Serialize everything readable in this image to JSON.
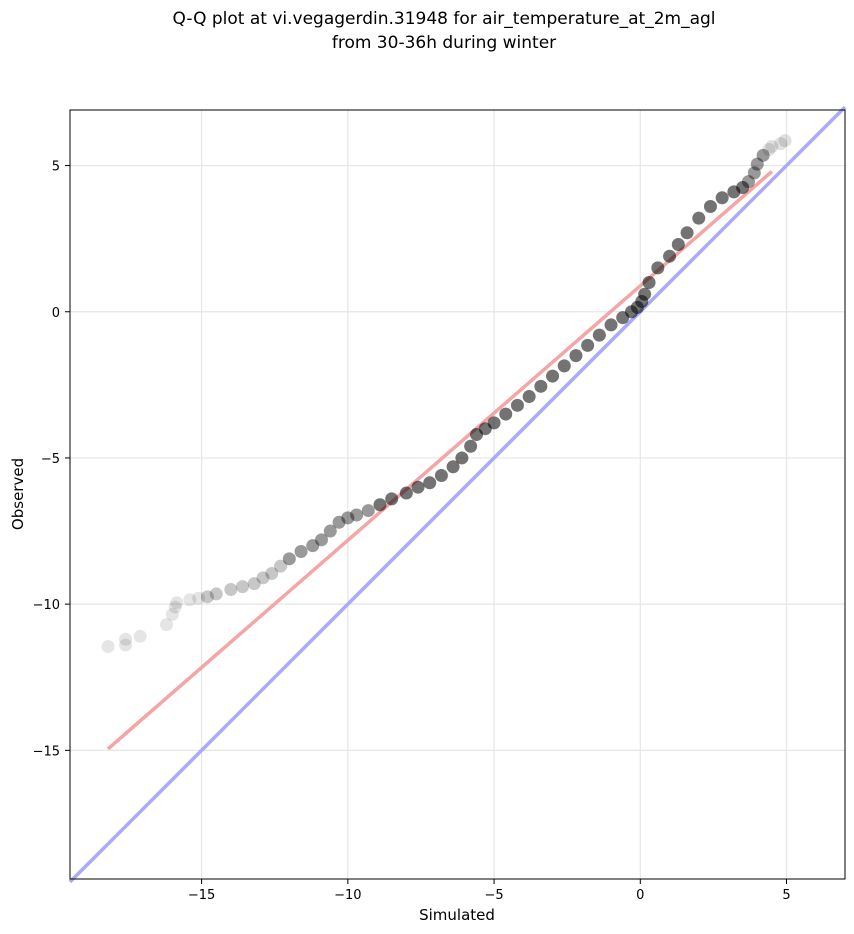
{
  "chart_data": {
    "type": "scatter",
    "title": [
      "Q-Q plot at vi.vegagerdin.31948 for air_temperature_at_2m_agl",
      "from 30-36h during winter"
    ],
    "xlabel": "Simulated",
    "ylabel": "Observed",
    "xlim": [
      -19.5,
      7.0
    ],
    "ylim": [
      -19.4,
      6.9
    ],
    "xticks": [
      -15,
      -10,
      -5,
      0,
      5
    ],
    "yticks": [
      -15,
      -10,
      -5,
      0,
      5
    ],
    "xtick_labels": [
      "−15",
      "−10",
      "−5",
      "0",
      "5"
    ],
    "ytick_labels": [
      "−15",
      "−10",
      "−5",
      "0",
      "5"
    ],
    "grid": true,
    "colors": {
      "points": "#000000",
      "fit_line": "#f4a5a5",
      "identity_line": "#aaaaf6"
    },
    "lines": [
      {
        "kind": "fit",
        "x": [
          -18.2,
          4.5
        ],
        "y": [
          -14.95,
          4.8
        ]
      },
      {
        "kind": "identity",
        "x": [
          -19.5,
          7.0
        ],
        "y": [
          -19.5,
          7.0
        ]
      }
    ],
    "series": [
      {
        "x": [
          -18.2,
          -17.6,
          -17.6,
          -17.1,
          -16.2,
          -16.0,
          -15.9,
          -15.85,
          -15.4,
          -15.1,
          -14.8,
          -14.5,
          -14.0,
          -13.6,
          -13.2,
          -12.9,
          -12.6,
          -12.3,
          -12.0,
          -11.6,
          -11.2,
          -10.9,
          -10.6,
          -10.3,
          -10.0,
          -9.7,
          -9.3,
          -8.9,
          -8.5,
          -8.0,
          -7.6,
          -7.2,
          -6.8,
          -6.4,
          -6.1,
          -5.8,
          -5.6,
          -5.3,
          -5.0,
          -4.6,
          -4.2,
          -3.8,
          -3.4,
          -3.0,
          -2.6,
          -2.2,
          -1.8,
          -1.4,
          -1.0,
          -0.6,
          -0.3,
          -0.1,
          0.05,
          0.15,
          0.3,
          0.6,
          1.0,
          1.3,
          1.6,
          2.0,
          2.4,
          2.8,
          3.2,
          3.5,
          3.7,
          3.9,
          4.0,
          4.2,
          4.4,
          4.5,
          4.8,
          4.95
        ],
        "y": [
          -11.45,
          -11.4,
          -11.2,
          -11.1,
          -10.7,
          -10.35,
          -10.1,
          -9.95,
          -9.85,
          -9.8,
          -9.75,
          -9.65,
          -9.5,
          -9.4,
          -9.3,
          -9.1,
          -8.95,
          -8.7,
          -8.45,
          -8.2,
          -8.0,
          -7.8,
          -7.5,
          -7.2,
          -7.05,
          -6.95,
          -6.8,
          -6.6,
          -6.4,
          -6.2,
          -6.0,
          -5.85,
          -5.6,
          -5.3,
          -5.0,
          -4.6,
          -4.2,
          -4.0,
          -3.8,
          -3.5,
          -3.2,
          -2.9,
          -2.55,
          -2.2,
          -1.85,
          -1.5,
          -1.15,
          -0.8,
          -0.45,
          -0.2,
          0.0,
          0.15,
          0.35,
          0.6,
          1.0,
          1.5,
          1.9,
          2.3,
          2.7,
          3.2,
          3.6,
          3.9,
          4.1,
          4.25,
          4.45,
          4.75,
          5.05,
          5.35,
          5.55,
          5.65,
          5.75,
          5.85
        ]
      }
    ]
  }
}
